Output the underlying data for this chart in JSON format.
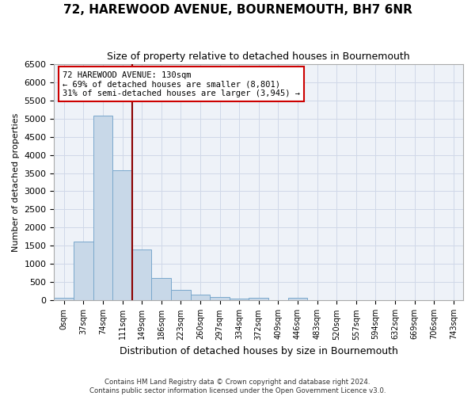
{
  "title": "72, HAREWOOD AVENUE, BOURNEMOUTH, BH7 6NR",
  "subtitle": "Size of property relative to detached houses in Bournemouth",
  "xlabel": "Distribution of detached houses by size in Bournemouth",
  "ylabel": "Number of detached properties",
  "bin_labels": [
    "0sqm",
    "37sqm",
    "74sqm",
    "111sqm",
    "149sqm",
    "186sqm",
    "223sqm",
    "260sqm",
    "297sqm",
    "334sqm",
    "372sqm",
    "409sqm",
    "446sqm",
    "483sqm",
    "520sqm",
    "557sqm",
    "594sqm",
    "632sqm",
    "669sqm",
    "706sqm",
    "743sqm"
  ],
  "bar_values": [
    70,
    1620,
    5080,
    3580,
    1410,
    620,
    300,
    155,
    90,
    55,
    65,
    0,
    65,
    0,
    0,
    0,
    0,
    0,
    0,
    0,
    0
  ],
  "bar_color": "#c8d8e8",
  "bar_edge_color": "#7aa8cc",
  "marker_color": "#8b0000",
  "annotation_text": "72 HAREWOOD AVENUE: 130sqm\n← 69% of detached houses are smaller (8,801)\n31% of semi-detached houses are larger (3,945) →",
  "annotation_box_color": "#ffffff",
  "annotation_box_edge": "#cc0000",
  "ylim": [
    0,
    6500
  ],
  "yticks": [
    0,
    500,
    1000,
    1500,
    2000,
    2500,
    3000,
    3500,
    4000,
    4500,
    5000,
    5500,
    6000,
    6500
  ],
  "grid_color": "#d0d8e8",
  "background_color": "#eef2f8",
  "footer_line1": "Contains HM Land Registry data © Crown copyright and database right 2024.",
  "footer_line2": "Contains public sector information licensed under the Open Government Licence v3.0."
}
